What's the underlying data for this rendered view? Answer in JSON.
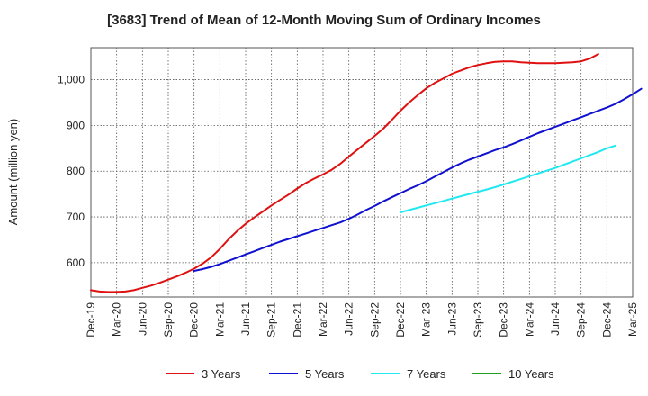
{
  "chart_data": {
    "type": "line",
    "title": "[3683]  Trend of Mean of 12-Month Moving Sum of Ordinary Incomes",
    "xlabel": "",
    "ylabel": "Amount (million yen)",
    "ylim": [
      525,
      1070
    ],
    "yticks": [
      600,
      700,
      800,
      900,
      1000
    ],
    "ytick_labels": [
      "600",
      "700",
      "800",
      "900",
      "1,000"
    ],
    "x_tick_labels": [
      "Dec-19",
      "Mar-20",
      "Jun-20",
      "Sep-20",
      "Dec-20",
      "Mar-21",
      "Jun-21",
      "Sep-21",
      "Dec-21",
      "Mar-22",
      "Jun-22",
      "Sep-22",
      "Dec-22",
      "Mar-23",
      "Jun-23",
      "Sep-23",
      "Dec-23",
      "Mar-24",
      "Jun-24",
      "Sep-24",
      "Dec-24",
      "Mar-25"
    ],
    "grid": true,
    "legend_position": "bottom",
    "series": [
      {
        "name": "3 Years",
        "color": "#e01010",
        "start_index": 0,
        "values": [
          540,
          537,
          536,
          536,
          537,
          540,
          545,
          550,
          556,
          563,
          570,
          578,
          587,
          598,
          612,
          630,
          651,
          669,
          685,
          699,
          712,
          725,
          737,
          749,
          762,
          774,
          784,
          793,
          803,
          816,
          832,
          847,
          862,
          877,
          893,
          912,
          932,
          950,
          966,
          981,
          993,
          1003,
          1013,
          1020,
          1027,
          1032,
          1036,
          1039,
          1040,
          1040,
          1038,
          1037,
          1036,
          1036,
          1036,
          1037,
          1038,
          1040,
          1046,
          1056
        ]
      },
      {
        "name": "5 Years",
        "color": "#1010d0",
        "start_index": 12,
        "values": [
          582,
          586,
          591,
          597,
          604,
          611,
          618,
          625,
          632,
          639,
          646,
          652,
          658,
          664,
          670,
          676,
          682,
          688,
          696,
          705,
          715,
          724,
          734,
          743,
          752,
          761,
          769,
          778,
          788,
          798,
          808,
          817,
          825,
          832,
          839,
          846,
          852,
          859,
          867,
          875,
          883,
          890,
          897,
          904,
          911,
          918,
          925,
          932,
          939,
          947,
          957,
          968,
          980
        ]
      },
      {
        "name": "7 Years",
        "color": "#20e8f0",
        "start_index": 36,
        "values": [
          710,
          715,
          720,
          725,
          730,
          735,
          740,
          745,
          750,
          755,
          760,
          765,
          771,
          777,
          783,
          789,
          795,
          801,
          807,
          814,
          821,
          828,
          835,
          842,
          850,
          856
        ]
      },
      {
        "name": "10 Years",
        "color": "#20a020",
        "start_index": 0,
        "values": []
      }
    ]
  }
}
